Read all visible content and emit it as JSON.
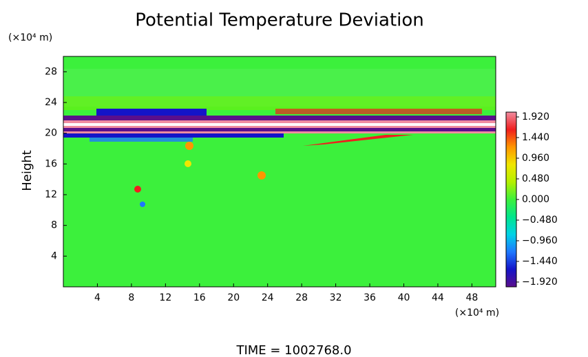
{
  "chart_data": {
    "type": "contour",
    "title": "Potential Temperature Deviation",
    "ylabel": "Height",
    "yunit": "(×10⁴ m)",
    "xunit": "(×10⁴ m)",
    "footer": "TIME = 1002768.0",
    "xlim": [
      0,
      50.8
    ],
    "ylim": [
      0,
      30
    ],
    "xticks": [
      4,
      8,
      12,
      16,
      20,
      24,
      28,
      32,
      36,
      40,
      44,
      48
    ],
    "yticks": [
      4,
      8,
      12,
      16,
      20,
      24,
      28
    ],
    "clim": [
      -2.032,
      2.032
    ],
    "cticks": [
      {
        "value": 1.92,
        "label": "1.920"
      },
      {
        "value": 1.44,
        "label": "1.440"
      },
      {
        "value": 0.96,
        "label": "0.960"
      },
      {
        "value": 0.48,
        "label": "0.480"
      },
      {
        "value": 0,
        "label": "0.000"
      },
      {
        "value": -0.48,
        "label": "−0.480"
      },
      {
        "value": -0.96,
        "label": "−0.960"
      },
      {
        "value": -1.44,
        "label": "−1.440"
      },
      {
        "value": -1.92,
        "label": "−1.920"
      }
    ],
    "colorscale": [
      "#5a0f8c",
      "#1414c8",
      "#1e78ff",
      "#00d2e6",
      "#00e68c",
      "#3cf03c",
      "#b4f000",
      "#f0e600",
      "#ff9600",
      "#f01e1e",
      "#f08ca0"
    ]
  }
}
